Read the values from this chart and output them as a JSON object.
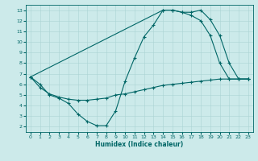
{
  "xlabel": "Humidex (Indice chaleur)",
  "bg_color": "#cceaea",
  "line_color": "#006666",
  "grid_color": "#aad4d4",
  "xlim": [
    -0.5,
    23.5
  ],
  "ylim": [
    1.5,
    13.5
  ],
  "xticks": [
    0,
    1,
    2,
    3,
    4,
    5,
    6,
    7,
    8,
    9,
    10,
    11,
    12,
    13,
    14,
    15,
    16,
    17,
    18,
    19,
    20,
    21,
    22,
    23
  ],
  "yticks": [
    2,
    3,
    4,
    5,
    6,
    7,
    8,
    9,
    10,
    11,
    12,
    13
  ],
  "line1_x": [
    0,
    1,
    2,
    3,
    4,
    5,
    6,
    7,
    8,
    9,
    10,
    11,
    12,
    13,
    14,
    15,
    16,
    17,
    18,
    19,
    20,
    21,
    22,
    23
  ],
  "line1_y": [
    6.7,
    6.0,
    5.0,
    4.7,
    4.2,
    3.2,
    2.5,
    2.1,
    2.1,
    3.5,
    6.3,
    8.5,
    10.5,
    11.6,
    13.0,
    13.0,
    12.8,
    12.8,
    13.0,
    12.1,
    10.6,
    8.0,
    6.5,
    6.5
  ],
  "line2_x": [
    0,
    1,
    2,
    3,
    4,
    5,
    6,
    7,
    8,
    9,
    10,
    11,
    12,
    13,
    14,
    15,
    16,
    17,
    18,
    19,
    20,
    21,
    22,
    23
  ],
  "line2_y": [
    6.7,
    5.7,
    5.1,
    4.8,
    4.6,
    4.5,
    4.5,
    4.6,
    4.7,
    5.0,
    5.1,
    5.3,
    5.5,
    5.7,
    5.9,
    6.0,
    6.1,
    6.2,
    6.3,
    6.4,
    6.5,
    6.5,
    6.5,
    6.5
  ],
  "line3_x": [
    0,
    14,
    15,
    16,
    17,
    18,
    19,
    20,
    21,
    22,
    23
  ],
  "line3_y": [
    6.7,
    13.0,
    13.0,
    12.8,
    12.5,
    12.0,
    10.6,
    8.0,
    6.5,
    6.5,
    6.5
  ]
}
